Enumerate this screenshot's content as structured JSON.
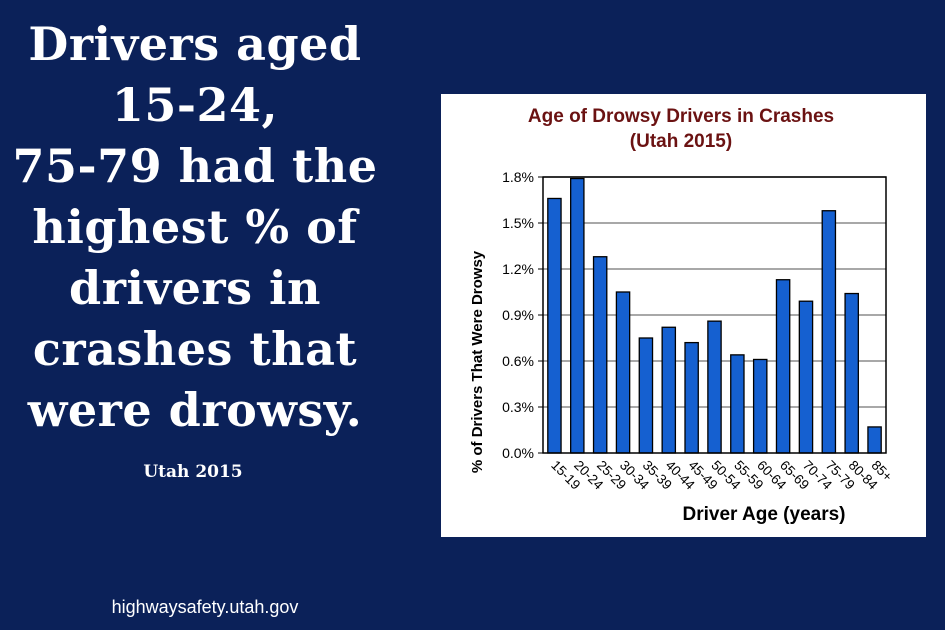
{
  "headline_lines": [
    "Drivers aged",
    "15-24,",
    "75-79 had the",
    "highest % of",
    "drivers in",
    "crashes that",
    "were drowsy."
  ],
  "subtag": "Utah 2015",
  "footer_url": "highwaysafety.utah.gov",
  "colors": {
    "background": "#0b2159",
    "bar_fill": "#1560d0",
    "title": "#6b1212"
  },
  "chart_data": {
    "type": "bar",
    "title": "Age of Drowsy Drivers in Crashes",
    "subtitle": "(Utah 2015)",
    "xlabel": "Driver Age (years)",
    "ylabel": "% of Drivers That Were Drowsy",
    "categories": [
      "15-19",
      "20-24",
      "25-29",
      "30-34",
      "35-39",
      "40-44",
      "45-49",
      "50-54",
      "55-59",
      "60-64",
      "65-69",
      "70-74",
      "75-79",
      "80-84",
      "85+"
    ],
    "values": [
      1.66,
      1.79,
      1.28,
      1.05,
      0.75,
      0.82,
      0.72,
      0.86,
      0.64,
      0.61,
      1.13,
      0.99,
      1.58,
      1.04,
      0.17
    ],
    "ylim": [
      0,
      1.8
    ],
    "yticks": [
      "0.0%",
      "0.3%",
      "0.6%",
      "0.9%",
      "1.2%",
      "1.5%",
      "1.8%"
    ],
    "ytick_values": [
      0,
      0.3,
      0.6,
      0.9,
      1.2,
      1.5,
      1.8
    ],
    "grid": "horizontal",
    "legend": "none"
  }
}
